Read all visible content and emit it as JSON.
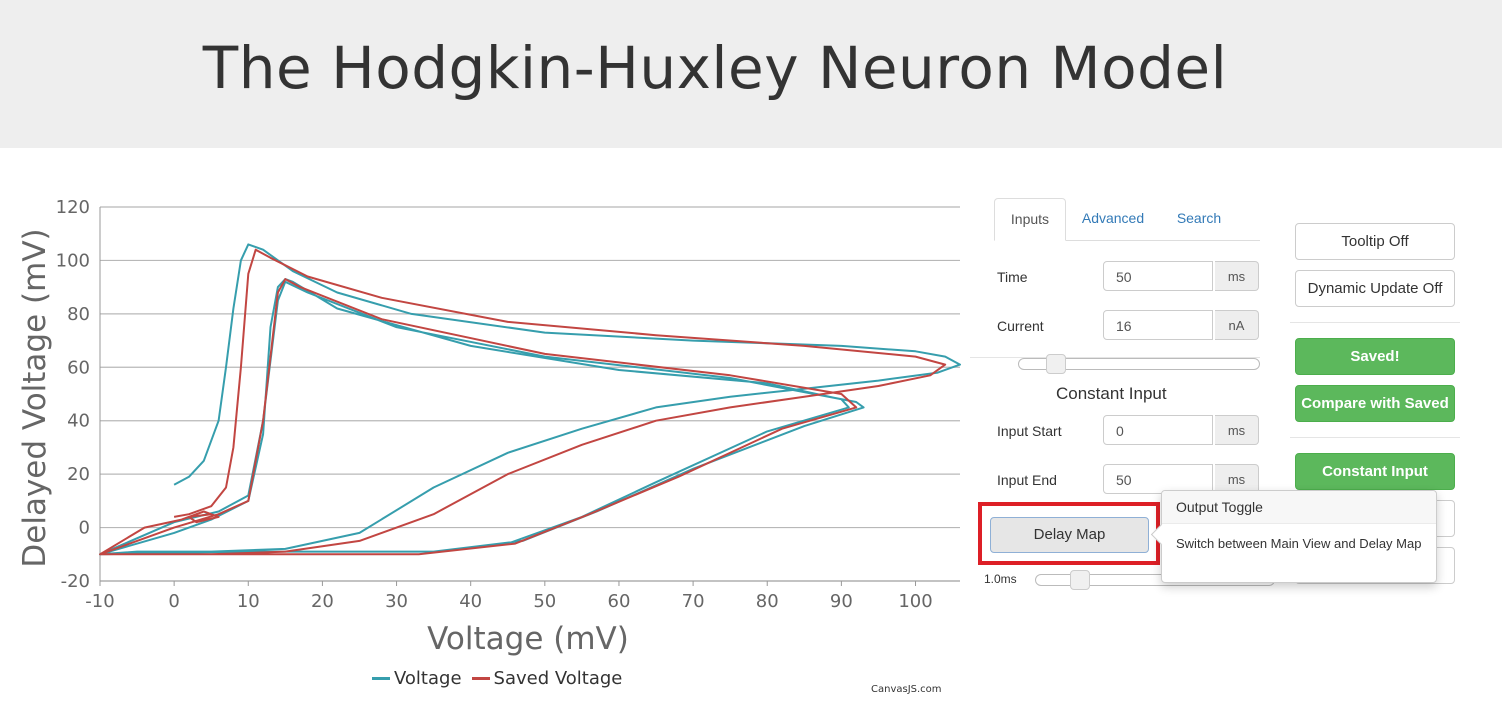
{
  "header": {
    "title": "The Hodgkin-Huxley Neuron Model"
  },
  "chart_data": {
    "type": "line",
    "title": "",
    "xlabel": "Voltage (mV)",
    "ylabel": "Delayed Voltage (mV)",
    "xlim": [
      -10,
      106
    ],
    "ylim": [
      -20,
      120
    ],
    "x_ticks": [
      -10,
      0,
      10,
      20,
      30,
      40,
      50,
      60,
      70,
      80,
      90,
      100
    ],
    "y_ticks": [
      -20,
      0,
      20,
      40,
      60,
      80,
      100,
      120
    ],
    "grid": "horizontal",
    "legend": "bottom-center",
    "series": [
      {
        "name": "Voltage",
        "color": "#369ead",
        "points": [
          [
            0,
            16
          ],
          [
            2,
            19
          ],
          [
            4,
            25
          ],
          [
            6,
            40
          ],
          [
            7,
            60
          ],
          [
            8,
            82
          ],
          [
            9,
            100
          ],
          [
            10,
            106
          ],
          [
            12,
            104
          ],
          [
            16,
            96
          ],
          [
            22,
            88
          ],
          [
            32,
            80
          ],
          [
            50,
            73
          ],
          [
            70,
            70
          ],
          [
            90,
            68
          ],
          [
            100,
            66
          ],
          [
            104,
            64
          ],
          [
            106,
            61
          ],
          [
            103,
            58
          ],
          [
            95,
            55
          ],
          [
            85,
            52
          ],
          [
            75,
            49
          ],
          [
            65,
            45
          ],
          [
            55,
            37
          ],
          [
            45,
            28
          ],
          [
            35,
            15
          ],
          [
            25,
            -2
          ],
          [
            15,
            -8
          ],
          [
            5,
            -9
          ],
          [
            -5,
            -9
          ],
          [
            -10,
            -10
          ],
          [
            0,
            -2
          ],
          [
            5,
            3
          ],
          [
            10,
            10
          ],
          [
            12,
            35
          ],
          [
            13,
            75
          ],
          [
            14,
            90
          ],
          [
            15,
            93
          ],
          [
            16,
            92
          ],
          [
            22,
            82
          ],
          [
            40,
            68
          ],
          [
            60,
            59
          ],
          [
            80,
            54
          ],
          [
            90,
            48
          ],
          [
            91,
            45
          ],
          [
            80,
            36
          ],
          [
            65,
            17
          ],
          [
            55,
            4
          ],
          [
            45,
            -6
          ],
          [
            35,
            -9
          ],
          [
            20,
            -9
          ],
          [
            0,
            -9
          ],
          [
            -10,
            -10
          ],
          [
            0,
            2
          ],
          [
            6,
            6
          ],
          [
            10,
            12
          ],
          [
            12,
            40
          ],
          [
            14,
            85
          ],
          [
            15,
            92
          ],
          [
            18,
            88
          ],
          [
            30,
            75
          ],
          [
            50,
            64
          ],
          [
            75,
            56
          ],
          [
            92,
            47
          ],
          [
            93,
            45
          ],
          [
            85,
            38
          ],
          [
            70,
            22
          ],
          [
            57,
            6
          ],
          [
            47,
            -5
          ],
          [
            35,
            -9
          ],
          [
            10,
            -9
          ],
          [
            -10,
            -10
          ]
        ]
      },
      {
        "name": "Saved Voltage",
        "color": "#c24642",
        "points": [
          [
            0,
            4
          ],
          [
            2,
            5
          ],
          [
            5,
            8
          ],
          [
            7,
            15
          ],
          [
            8,
            30
          ],
          [
            9,
            60
          ],
          [
            10,
            95
          ],
          [
            11,
            104
          ],
          [
            13,
            101
          ],
          [
            18,
            94
          ],
          [
            28,
            86
          ],
          [
            45,
            77
          ],
          [
            65,
            72
          ],
          [
            85,
            68
          ],
          [
            100,
            64
          ],
          [
            104,
            61
          ],
          [
            102,
            57
          ],
          [
            95,
            53
          ],
          [
            85,
            49
          ],
          [
            75,
            45
          ],
          [
            65,
            40
          ],
          [
            55,
            31
          ],
          [
            45,
            20
          ],
          [
            35,
            5
          ],
          [
            25,
            -5
          ],
          [
            15,
            -9
          ],
          [
            5,
            -10
          ],
          [
            -5,
            -10
          ],
          [
            -10,
            -10
          ],
          [
            0,
            0
          ],
          [
            6,
            5
          ],
          [
            10,
            10
          ],
          [
            12,
            40
          ],
          [
            14,
            88
          ],
          [
            15,
            93
          ],
          [
            17,
            90
          ],
          [
            28,
            78
          ],
          [
            50,
            65
          ],
          [
            75,
            57
          ],
          [
            90,
            50
          ],
          [
            92,
            45
          ],
          [
            82,
            37
          ],
          [
            68,
            19
          ],
          [
            56,
            5
          ],
          [
            46,
            -6
          ],
          [
            33,
            -10
          ],
          [
            10,
            -10
          ],
          [
            -10,
            -10
          ],
          [
            -4,
            0
          ],
          [
            1,
            3
          ],
          [
            4,
            6
          ],
          [
            6,
            4
          ],
          [
            3,
            2
          ],
          [
            2,
            4
          ],
          [
            5,
            5
          ]
        ]
      }
    ]
  },
  "legend": {
    "items": [
      {
        "label": "Voltage",
        "color": "#369ead"
      },
      {
        "label": "Saved Voltage",
        "color": "#c24642"
      }
    ]
  },
  "credits": "CanvasJS.com",
  "tabs": [
    {
      "label": "Inputs"
    },
    {
      "label": "Advanced"
    },
    {
      "label": "Search"
    }
  ],
  "inputs": {
    "time": {
      "label": "Time",
      "value": "50",
      "unit": "ms"
    },
    "current": {
      "label": "Current",
      "value": "16",
      "unit": "nA"
    },
    "current_slider": 0.12,
    "section_title": "Constant Input",
    "input_start": {
      "label": "Input Start",
      "value": "0",
      "unit": "ms"
    },
    "input_end": {
      "label": "Input End",
      "value": "50",
      "unit": "ms"
    },
    "delay_button": "Delay Map",
    "delay_value": "1.0ms",
    "delay_slider": 0.15
  },
  "popover": {
    "title": "Output Toggle",
    "body": "Switch between Main View and Delay Map"
  },
  "controls": {
    "tooltip": "Tooltip Off",
    "dynamic_update": "Dynamic Update Off",
    "saved": "Saved!",
    "compare": "Compare with Saved",
    "constant_input": "Constant Input"
  }
}
